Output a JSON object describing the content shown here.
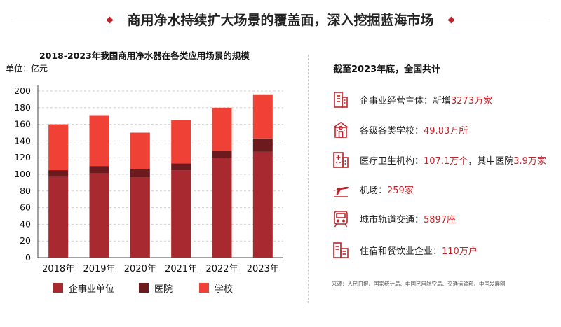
{
  "header": {
    "title": "商用净水持续扩大场景的覆盖面，深入挖掘蓝海市场"
  },
  "colors": {
    "enterprise": "#a82a30",
    "hospital": "#6d1a1e",
    "school": "#ef4135",
    "accent": "#c0242b"
  },
  "chart_data": {
    "type": "bar",
    "stacked": true,
    "title": "2018-2023年我国商用净水器在各类应用场景的规模",
    "ylabel": "单位：亿元",
    "categories": [
      "2018年",
      "2019年",
      "2020年",
      "2021年",
      "2022年",
      "2023年"
    ],
    "yticks": [
      "0",
      "20",
      "40",
      "60",
      "80",
      "100",
      "120",
      "140",
      "160",
      "180",
      "200"
    ],
    "ylim": [
      0,
      200
    ],
    "grid": true,
    "legend_position": "bottom",
    "series": [
      {
        "name": "企事业单位",
        "values": [
          97,
          101,
          96,
          105,
          120,
          127
        ]
      },
      {
        "name": "医院",
        "values": [
          8,
          9,
          10,
          8,
          8,
          16
        ]
      },
      {
        "name": "学校",
        "values": [
          55,
          61,
          44,
          52,
          52,
          53
        ]
      }
    ]
  },
  "stats": {
    "title": "截至2023年底，全国共计",
    "items": [
      {
        "icon": "building-icon",
        "label": "企事业经营主体：新增 ",
        "value": "3273万家"
      },
      {
        "icon": "school-icon",
        "label": "各级各类学校：",
        "value": "49.83万所"
      },
      {
        "icon": "hospital-icon",
        "label": "医疗卫生机构：",
        "value": "107.1万个",
        "mid": "，其中医院",
        "value2": "3.9万家"
      },
      {
        "icon": "airplane-icon",
        "label": "机场：",
        "value": "259家"
      },
      {
        "icon": "train-icon",
        "label": "城市轨道交通：",
        "value": "5897座"
      },
      {
        "icon": "hotel-icon",
        "label": "住宿和餐饮业企业：",
        "value": "110万户"
      }
    ]
  },
  "source": "来源：人民日报、国家统计局、中国民用航空局、交通运输部、中国发展网"
}
